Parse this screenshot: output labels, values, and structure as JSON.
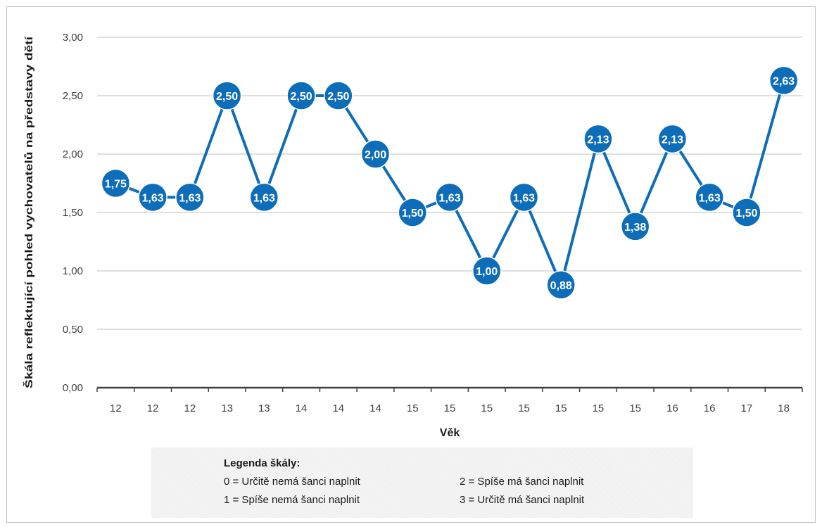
{
  "chart_data": {
    "type": "line",
    "xlabel": "Věk",
    "ylabel": "Škála reflektující pohled vychovatelů na představy dětí",
    "categories": [
      "12",
      "12",
      "12",
      "13",
      "13",
      "14",
      "14",
      "14",
      "15",
      "15",
      "15",
      "15",
      "15",
      "15",
      "15",
      "16",
      "16",
      "17",
      "18"
    ],
    "series": [
      {
        "values": [
          1.75,
          1.63,
          1.63,
          2.5,
          1.63,
          2.5,
          2.5,
          2.0,
          1.5,
          1.63,
          1.0,
          1.63,
          0.88,
          2.13,
          1.38,
          2.13,
          1.63,
          1.5,
          2.63
        ],
        "labels": [
          "1,75",
          "1,63",
          "1,63",
          "2,50",
          "1,63",
          "2,50",
          "2,50",
          "2,00",
          "1,50",
          "1,63",
          "1,00",
          "1,63",
          "0,88",
          "2,13",
          "1,38",
          "2,13",
          "1,63",
          "1,50",
          "2,63"
        ]
      }
    ],
    "ylim": [
      0,
      3
    ],
    "yticks": [
      0,
      0.5,
      1,
      1.5,
      2,
      2.5,
      3
    ],
    "ytick_labels": [
      "0,00",
      "0,50",
      "1,00",
      "1,50",
      "2,00",
      "2,50",
      "3,00"
    ],
    "grid": true,
    "colors": {
      "line": "#0e6db8",
      "marker": "#0e6db8",
      "gridline": "#bfbfbf",
      "axis": "#404040"
    }
  },
  "legend": {
    "title": "Legenda škály:",
    "items": [
      "0 = Určitě nemá šanci naplnit",
      "1 = Spíše nemá šanci naplnit",
      "2 = Spíše má šanci naplnit",
      "3 = Určitě má šanci naplnit"
    ]
  }
}
